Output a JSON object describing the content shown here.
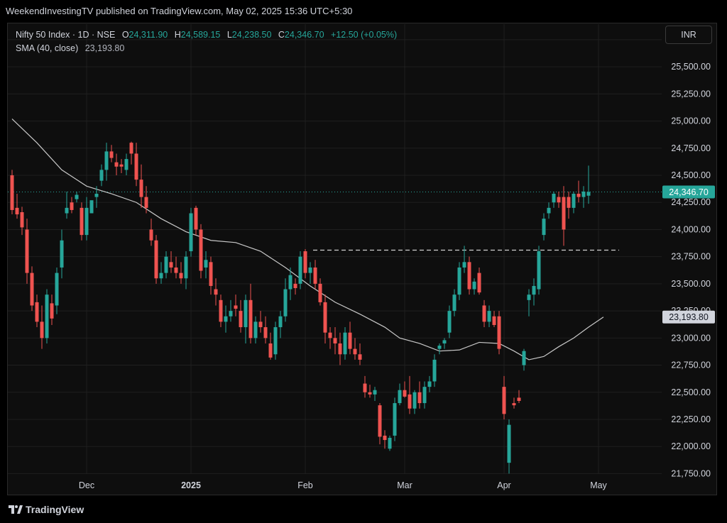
{
  "header": {
    "publisher": "WeekendInvestingTV published on TradingView.com, May 02, 2025 15:36 UTC+5:30"
  },
  "legend": {
    "instrument": "Nifty 50 Index · 1D · NSE",
    "o_label": "O",
    "o_value": "24,311.90",
    "h_label": "H",
    "h_value": "24,589.15",
    "l_label": "L",
    "l_value": "24,238.50",
    "c_label": "C",
    "c_value": "24,346.70",
    "change": "+12.50 (+0.05%)",
    "sma_label": "SMA (40, close)",
    "sma_value": "23,193.80"
  },
  "currency_button": "INR",
  "footer": {
    "brand": "TradingView"
  },
  "colors": {
    "up": "#26a69a",
    "down": "#ef5350",
    "sma": "#c8c8c8",
    "grid": "#1f1f1f",
    "axis_text": "#d1d4dc",
    "dotted_last": "#26a69a",
    "resistance": "#cfcfcf",
    "last_price_bg": "#26a69a",
    "sma_tag_bg": "#d1d4dc"
  },
  "chart_data": {
    "type": "candlestick",
    "title": "Nifty 50 Index · 1D · NSE",
    "ylim": [
      21550,
      25900
    ],
    "y_ticks": [
      21750,
      22000,
      22250,
      22500,
      22750,
      23000,
      23250,
      23500,
      23750,
      24000,
      24250,
      24500,
      24750,
      25000,
      25250,
      25500,
      25750
    ],
    "x_ticks": [
      {
        "label": "Dec",
        "index": 15
      },
      {
        "label": "2025",
        "index": 36
      },
      {
        "label": "Feb",
        "index": 59
      },
      {
        "label": "Mar",
        "index": 79
      },
      {
        "label": "Apr",
        "index": 99
      },
      {
        "label": "May",
        "index": 118
      }
    ],
    "last_price": 24346.7,
    "last_price_label": "24,346.70",
    "sma_last_label": "23,193.80",
    "resistance_level": 23810,
    "resistance_from_index": 61,
    "candles": [
      [
        24500,
        24550,
        24140,
        24180
      ],
      [
        24200,
        24330,
        24100,
        24140
      ],
      [
        24160,
        24210,
        23950,
        24020
      ],
      [
        24000,
        24100,
        23500,
        23600
      ],
      [
        23600,
        23660,
        23250,
        23300
      ],
      [
        23330,
        23400,
        23100,
        23150
      ],
      [
        23150,
        23300,
        22900,
        23000
      ],
      [
        23000,
        23450,
        22950,
        23400
      ],
      [
        23320,
        23400,
        23120,
        23180
      ],
      [
        23300,
        23650,
        23220,
        23600
      ],
      [
        23650,
        24000,
        23550,
        23900
      ],
      [
        24150,
        24350,
        24100,
        24200
      ],
      [
        24250,
        24300,
        24150,
        24180
      ],
      [
        24280,
        24350,
        24250,
        24320
      ],
      [
        24200,
        24250,
        23900,
        23950
      ],
      [
        23950,
        24300,
        23900,
        24200
      ],
      [
        24150,
        24250,
        24150,
        24270
      ],
      [
        24300,
        24400,
        24200,
        24330
      ],
      [
        24450,
        24600,
        24400,
        24550
      ],
      [
        24550,
        24800,
        24450,
        24720
      ],
      [
        24720,
        24780,
        24620,
        24660
      ],
      [
        24620,
        24700,
        24500,
        24580
      ],
      [
        24600,
        24650,
        24520,
        24580
      ],
      [
        24550,
        24700,
        24500,
        24650
      ],
      [
        24800,
        24810,
        24600,
        24700
      ],
      [
        24700,
        24800,
        24400,
        24460
      ],
      [
        24460,
        24600,
        24200,
        24300
      ],
      [
        24300,
        24400,
        24150,
        24200
      ],
      [
        24000,
        24100,
        23850,
        23900
      ],
      [
        23900,
        23950,
        23500,
        23550
      ],
      [
        23550,
        23700,
        23500,
        23600
      ],
      [
        23600,
        23800,
        23550,
        23750
      ],
      [
        23700,
        23800,
        23600,
        23650
      ],
      [
        23650,
        23750,
        23550,
        23600
      ],
      [
        23600,
        23700,
        23500,
        23550
      ],
      [
        23550,
        23800,
        23450,
        23750
      ],
      [
        23800,
        24200,
        23750,
        24150
      ],
      [
        24200,
        24220,
        23950,
        24000
      ],
      [
        24000,
        24050,
        23550,
        23620
      ],
      [
        23650,
        23800,
        23550,
        23720
      ],
      [
        23700,
        23750,
        23400,
        23480
      ],
      [
        23450,
        23550,
        23300,
        23400
      ],
      [
        23350,
        23400,
        23100,
        23150
      ],
      [
        23150,
        23300,
        23050,
        23200
      ],
      [
        23200,
        23350,
        23150,
        23250
      ],
      [
        23300,
        23400,
        23200,
        23270
      ],
      [
        23250,
        23350,
        23050,
        23100
      ],
      [
        23100,
        23400,
        22950,
        23350
      ],
      [
        23350,
        23500,
        22950,
        23000
      ],
      [
        23000,
        23200,
        22950,
        23150
      ],
      [
        23150,
        23250,
        23050,
        23100
      ],
      [
        23100,
        23200,
        22950,
        23000
      ],
      [
        22950,
        23050,
        22800,
        22820
      ],
      [
        22850,
        23150,
        22800,
        23100
      ],
      [
        23100,
        23250,
        23000,
        23200
      ],
      [
        23200,
        23550,
        23150,
        23450
      ],
      [
        23450,
        23650,
        23350,
        23580
      ],
      [
        23500,
        23550,
        23400,
        23460
      ],
      [
        23500,
        23800,
        23450,
        23750
      ],
      [
        23800,
        23820,
        23550,
        23600
      ],
      [
        23600,
        23700,
        23500,
        23650
      ],
      [
        23650,
        23720,
        23450,
        23500
      ],
      [
        23500,
        23550,
        23300,
        23330
      ],
      [
        23330,
        23400,
        22950,
        23050
      ],
      [
        23050,
        23100,
        22900,
        23000
      ],
      [
        23000,
        23100,
        22850,
        22950
      ],
      [
        22950,
        23050,
        22750,
        22850
      ],
      [
        22850,
        23100,
        22800,
        23050
      ],
      [
        23050,
        23150,
        22850,
        22900
      ],
      [
        22900,
        23000,
        22800,
        22850
      ],
      [
        22850,
        22950,
        22750,
        22800
      ],
      [
        22580,
        22650,
        22450,
        22500
      ],
      [
        22500,
        22570,
        22450,
        22480
      ],
      [
        22480,
        22550,
        22420,
        22520
      ],
      [
        22380,
        22400,
        22020,
        22090
      ],
      [
        22100,
        22150,
        21980,
        22060
      ],
      [
        21980,
        22100,
        21960,
        22080
      ],
      [
        22100,
        22450,
        22050,
        22400
      ],
      [
        22400,
        22580,
        22380,
        22520
      ],
      [
        22520,
        22600,
        22450,
        22460
      ],
      [
        22480,
        22650,
        22300,
        22350
      ],
      [
        22350,
        22520,
        22300,
        22500
      ],
      [
        22500,
        22600,
        22350,
        22400
      ],
      [
        22400,
        22600,
        22350,
        22550
      ],
      [
        22550,
        22650,
        22500,
        22600
      ],
      [
        22600,
        22850,
        22550,
        22800
      ],
      [
        22900,
        22950,
        22850,
        22930
      ],
      [
        22950,
        23000,
        22900,
        22980
      ],
      [
        23050,
        23300,
        23000,
        23250
      ],
      [
        23250,
        23450,
        23200,
        23400
      ],
      [
        23400,
        23700,
        23350,
        23650
      ],
      [
        23650,
        23850,
        23600,
        23700
      ],
      [
        23700,
        23750,
        23400,
        23450
      ],
      [
        23450,
        23550,
        23400,
        23520
      ],
      [
        23600,
        23650,
        23400,
        23420
      ],
      [
        23300,
        23350,
        23100,
        23150
      ],
      [
        23150,
        23300,
        23100,
        23250
      ],
      [
        23200,
        23250,
        23100,
        23120
      ],
      [
        23200,
        23250,
        22850,
        22900
      ],
      [
        22550,
        22650,
        22250,
        22300
      ],
      [
        21850,
        22250,
        21750,
        22200
      ],
      [
        22400,
        22450,
        22350,
        22380
      ],
      [
        22450,
        22520,
        22400,
        22420
      ],
      [
        22750,
        22900,
        22700,
        22880
      ],
      [
        23350,
        23450,
        23200,
        23400
      ],
      [
        23400,
        23550,
        23300,
        23480
      ],
      [
        23450,
        23850,
        23400,
        23800
      ],
      [
        23950,
        24150,
        23900,
        24100
      ],
      [
        24150,
        24250,
        24100,
        24200
      ],
      [
        24250,
        24350,
        24200,
        24330
      ],
      [
        24300,
        24350,
        24200,
        24250
      ],
      [
        24300,
        24400,
        23850,
        24000
      ],
      [
        24300,
        24350,
        24100,
        24200
      ],
      [
        24200,
        24350,
        24150,
        24330
      ],
      [
        24330,
        24450,
        24250,
        24300
      ],
      [
        24300,
        24400,
        24200,
        24350
      ],
      [
        24312,
        24589,
        24238,
        24347
      ]
    ],
    "sma": [
      [
        0,
        25020
      ],
      [
        5,
        24800
      ],
      [
        10,
        24550
      ],
      [
        15,
        24400
      ],
      [
        20,
        24330
      ],
      [
        25,
        24250
      ],
      [
        30,
        24100
      ],
      [
        35,
        23980
      ],
      [
        40,
        23900
      ],
      [
        45,
        23880
      ],
      [
        50,
        23800
      ],
      [
        55,
        23650
      ],
      [
        60,
        23480
      ],
      [
        65,
        23330
      ],
      [
        70,
        23220
      ],
      [
        75,
        23100
      ],
      [
        78,
        23000
      ],
      [
        82,
        22950
      ],
      [
        86,
        22880
      ],
      [
        90,
        22890
      ],
      [
        94,
        22960
      ],
      [
        98,
        22950
      ],
      [
        101,
        22880
      ],
      [
        104,
        22800
      ],
      [
        107,
        22830
      ],
      [
        110,
        22920
      ],
      [
        113,
        23000
      ],
      [
        116,
        23100
      ],
      [
        119,
        23193.8
      ]
    ]
  }
}
